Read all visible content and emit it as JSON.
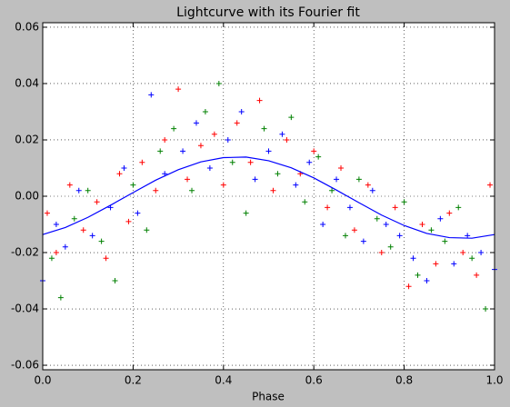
{
  "chart_data": {
    "type": "scatter",
    "title": "Lightcurve with its Fourier fit",
    "xlabel": "Phase",
    "xlim": [
      0,
      1
    ],
    "ylim": [
      -0.0616,
      0.0616
    ],
    "xticks": [
      {
        "value": 0,
        "label": "0.0"
      },
      0.2,
      0.4,
      0.6,
      0.8,
      {
        "value": 1,
        "label": "1.0"
      }
    ],
    "yticks": [
      -0.06,
      -0.04,
      -0.02,
      {
        "value": 0,
        "label": "0.00"
      },
      0.02,
      0.04,
      0.06
    ],
    "grid": true,
    "series": [
      {
        "color": "#ff0000",
        "marker": "+",
        "x": [
          0.01,
          0.03,
          0.06,
          0.09,
          0.12,
          0.14,
          0.17,
          0.19,
          0.22,
          0.25,
          0.27,
          0.3,
          0.32,
          0.35,
          0.38,
          0.4,
          0.43,
          0.46,
          0.48,
          0.51,
          0.54,
          0.57,
          0.6,
          0.63,
          0.66,
          0.69,
          0.72,
          0.75,
          0.78,
          0.81,
          0.84,
          0.87,
          0.9,
          0.93,
          0.96,
          0.99
        ],
        "values": [
          -0.006,
          -0.02,
          0.004,
          -0.012,
          -0.002,
          -0.022,
          0.008,
          -0.009,
          0.012,
          0.002,
          0.02,
          0.038,
          0.006,
          0.018,
          0.022,
          0.004,
          0.026,
          0.012,
          0.034,
          0.002,
          0.02,
          0.008,
          0.016,
          -0.004,
          0.01,
          -0.012,
          0.004,
          -0.02,
          -0.004,
          -0.032,
          -0.01,
          -0.024,
          -0.006,
          -0.02,
          -0.028,
          0.004
        ]
      },
      {
        "color": "#008000",
        "marker": "+",
        "x": [
          0.02,
          0.04,
          0.07,
          0.1,
          0.13,
          0.16,
          0.2,
          0.23,
          0.26,
          0.29,
          0.33,
          0.36,
          0.39,
          0.42,
          0.45,
          0.49,
          0.52,
          0.55,
          0.58,
          0.61,
          0.64,
          0.67,
          0.7,
          0.74,
          0.77,
          0.8,
          0.83,
          0.86,
          0.89,
          0.92,
          0.95,
          0.98
        ],
        "values": [
          -0.022,
          -0.036,
          -0.008,
          0.002,
          -0.016,
          -0.03,
          0.004,
          -0.012,
          0.016,
          0.024,
          0.002,
          0.03,
          0.04,
          0.012,
          -0.006,
          0.024,
          0.008,
          0.028,
          -0.002,
          0.014,
          0.002,
          -0.014,
          0.006,
          -0.008,
          -0.018,
          -0.002,
          -0.028,
          -0.012,
          -0.016,
          -0.004,
          -0.022,
          -0.04
        ]
      },
      {
        "color": "#0000ff",
        "marker": "+",
        "x": [
          0.0,
          0.03,
          0.05,
          0.08,
          0.11,
          0.15,
          0.18,
          0.21,
          0.24,
          0.27,
          0.31,
          0.34,
          0.37,
          0.41,
          0.44,
          0.47,
          0.5,
          0.53,
          0.56,
          0.59,
          0.62,
          0.65,
          0.68,
          0.71,
          0.73,
          0.76,
          0.79,
          0.82,
          0.85,
          0.88,
          0.91,
          0.94,
          0.97,
          1.0
        ],
        "values": [
          -0.03,
          -0.01,
          -0.018,
          0.002,
          -0.014,
          -0.004,
          0.01,
          -0.006,
          0.036,
          0.008,
          0.016,
          0.026,
          0.01,
          0.02,
          0.03,
          0.006,
          0.016,
          0.022,
          0.004,
          0.012,
          -0.01,
          0.006,
          -0.004,
          -0.016,
          0.002,
          -0.01,
          -0.014,
          -0.022,
          -0.03,
          -0.008,
          -0.024,
          -0.014,
          -0.02,
          -0.026
        ]
      },
      {
        "color": "#0000ff",
        "marker": "line",
        "x": [
          0,
          0.05,
          0.1,
          0.15,
          0.2,
          0.25,
          0.3,
          0.35,
          0.4,
          0.45,
          0.5,
          0.55,
          0.6,
          0.65,
          0.7,
          0.75,
          0.8,
          0.85,
          0.9,
          0.95,
          1
        ],
        "values": [
          -0.0136,
          -0.0111,
          -0.0075,
          -0.0032,
          0.0013,
          0.0057,
          0.0094,
          0.0122,
          0.0137,
          0.0139,
          0.0126,
          0.0101,
          0.0065,
          0.0022,
          -0.0023,
          -0.0067,
          -0.0104,
          -0.0132,
          -0.0147,
          -0.0149,
          -0.0136
        ]
      }
    ]
  }
}
